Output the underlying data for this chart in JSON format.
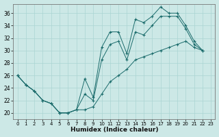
{
  "xlabel": "Humidex (Indice chaleur)",
  "bg_color": "#cce8e6",
  "grid_color": "#aad4d2",
  "line_color": "#1a6b6b",
  "xlim": [
    -0.5,
    23.5
  ],
  "ylim": [
    19.0,
    37.5
  ],
  "yticks": [
    20,
    22,
    24,
    26,
    28,
    30,
    32,
    34,
    36
  ],
  "xticks": [
    0,
    1,
    2,
    3,
    4,
    5,
    6,
    7,
    8,
    9,
    10,
    11,
    12,
    13,
    14,
    15,
    16,
    17,
    18,
    19,
    20,
    21,
    22,
    23
  ],
  "line1_x": [
    0,
    1,
    2,
    3,
    4,
    5,
    6,
    7,
    8,
    9,
    10,
    11,
    12,
    13,
    14,
    15,
    16,
    17,
    18,
    19,
    20,
    21,
    22
  ],
  "line1_y": [
    26.0,
    24.5,
    23.5,
    22.0,
    21.5,
    20.0,
    20.0,
    20.5,
    25.5,
    22.5,
    30.5,
    33.0,
    33.0,
    29.5,
    35.0,
    34.5,
    35.5,
    37.0,
    36.0,
    36.0,
    34.0,
    31.5,
    30.0
  ],
  "line2_x": [
    0,
    1,
    2,
    3,
    4,
    5,
    6,
    7,
    8,
    9,
    10,
    11,
    12,
    13,
    14,
    15,
    16,
    17,
    18,
    19,
    20,
    21,
    22
  ],
  "line2_y": [
    26.0,
    24.5,
    23.5,
    22.0,
    21.5,
    20.0,
    20.0,
    20.5,
    20.5,
    21.0,
    23.0,
    25.0,
    26.0,
    27.0,
    28.5,
    29.0,
    29.5,
    30.0,
    30.5,
    31.0,
    31.5,
    30.5,
    30.0
  ],
  "line3_x": [
    0,
    1,
    2,
    3,
    4,
    5,
    6,
    7,
    8,
    9,
    10,
    11,
    12,
    13,
    14,
    15,
    16,
    17,
    18,
    19,
    20,
    21,
    22
  ],
  "line3_y": [
    26.0,
    24.5,
    23.5,
    22.0,
    21.5,
    20.0,
    20.0,
    20.5,
    23.0,
    22.0,
    28.5,
    31.0,
    31.5,
    28.5,
    33.0,
    32.5,
    34.0,
    35.5,
    35.5,
    35.5,
    33.5,
    31.0,
    30.0
  ]
}
